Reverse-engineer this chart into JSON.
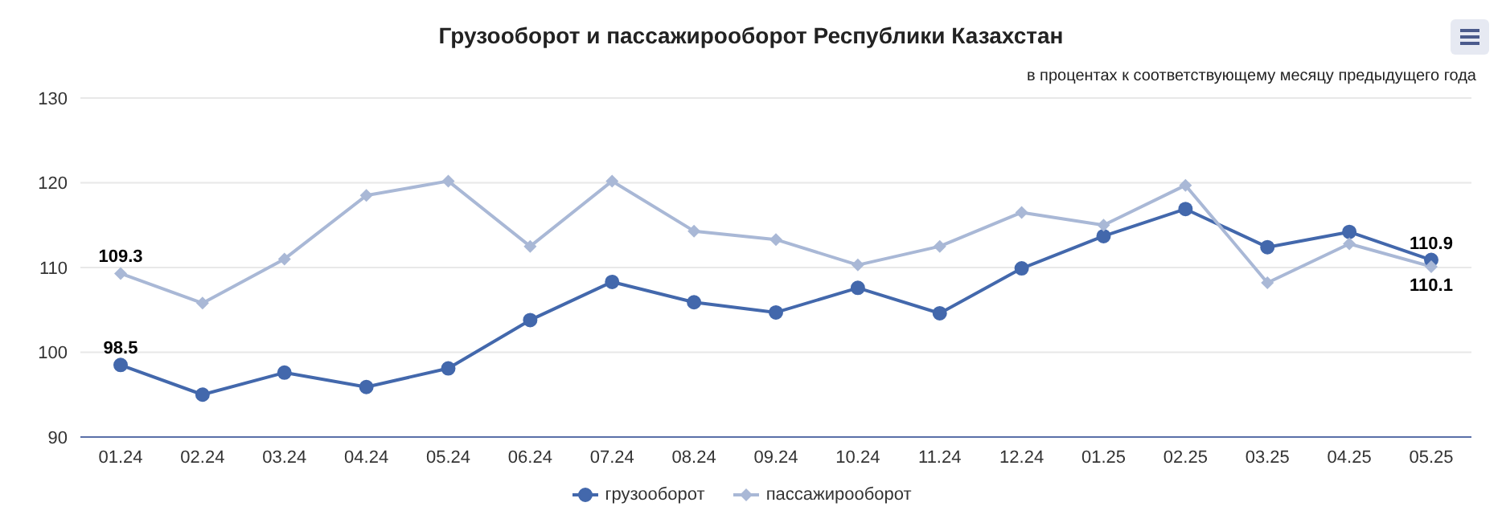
{
  "chart_data": {
    "type": "line",
    "title": "Грузооборот и пассажирооборот Республики Казахстан",
    "subtitle": "в процентах к соответствующему месяцу предыдущего года",
    "categories": [
      "01.24",
      "02.24",
      "03.24",
      "04.24",
      "05.24",
      "06.24",
      "07.24",
      "08.24",
      "09.24",
      "10.24",
      "11.24",
      "12.24",
      "01.25",
      "02.25",
      "03.25",
      "04.25",
      "05.25"
    ],
    "series": [
      {
        "name": "грузооборот",
        "color": "#4368ac",
        "marker": "circle",
        "values": [
          98.5,
          95.0,
          97.6,
          95.9,
          98.1,
          103.8,
          108.3,
          105.9,
          104.7,
          107.6,
          104.6,
          109.9,
          113.7,
          116.9,
          112.4,
          114.2,
          110.9
        ],
        "value_labels": [
          "98.5",
          null,
          null,
          null,
          null,
          null,
          null,
          null,
          null,
          null,
          null,
          null,
          null,
          null,
          null,
          null,
          "110.9"
        ]
      },
      {
        "name": "пассажирооборот",
        "color": "#a9b8d6",
        "marker": "diamond",
        "values": [
          109.3,
          105.8,
          111.0,
          118.5,
          120.2,
          112.5,
          120.2,
          114.3,
          113.3,
          110.3,
          112.5,
          116.5,
          115.0,
          119.7,
          108.2,
          112.8,
          110.1
        ],
        "value_labels": [
          "109.3",
          null,
          null,
          null,
          null,
          null,
          null,
          null,
          null,
          null,
          null,
          null,
          null,
          null,
          null,
          null,
          "110.1"
        ]
      }
    ],
    "ylim": [
      90,
      130
    ],
    "yticks": [
      90,
      100,
      110,
      120,
      130
    ],
    "grid": "y",
    "legend": "bottom",
    "line_style": "solid"
  }
}
